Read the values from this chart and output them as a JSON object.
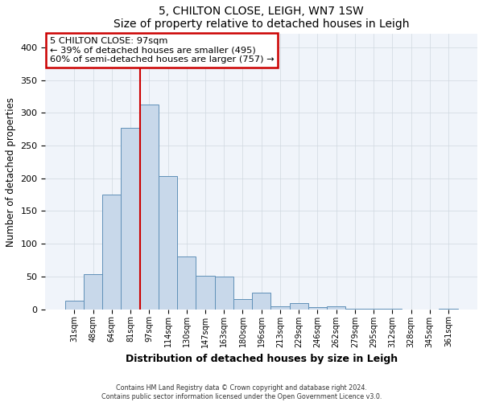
{
  "title": "5, CHILTON CLOSE, LEIGH, WN7 1SW",
  "subtitle": "Size of property relative to detached houses in Leigh",
  "xlabel": "Distribution of detached houses by size in Leigh",
  "ylabel": "Number of detached properties",
  "bar_labels": [
    "31sqm",
    "48sqm",
    "64sqm",
    "81sqm",
    "97sqm",
    "114sqm",
    "130sqm",
    "147sqm",
    "163sqm",
    "180sqm",
    "196sqm",
    "213sqm",
    "229sqm",
    "246sqm",
    "262sqm",
    "279sqm",
    "295sqm",
    "312sqm",
    "328sqm",
    "345sqm",
    "361sqm"
  ],
  "bar_heights": [
    13,
    54,
    175,
    277,
    313,
    203,
    81,
    51,
    50,
    16,
    25,
    5,
    10,
    3,
    5,
    1,
    1,
    1,
    0,
    0,
    1
  ],
  "bar_color": "#c8d8ea",
  "bar_edge_color": "#6090b8",
  "vline_index": 4,
  "vline_color": "#cc0000",
  "ylim": [
    0,
    420
  ],
  "yticks": [
    0,
    50,
    100,
    150,
    200,
    250,
    300,
    350,
    400
  ],
  "annotation_title": "5 CHILTON CLOSE: 97sqm",
  "annotation_line1": "← 39% of detached houses are smaller (495)",
  "annotation_line2": "60% of semi-detached houses are larger (757) →",
  "annotation_box_color": "#ffffff",
  "annotation_box_edge_color": "#cc0000",
  "footer1": "Contains HM Land Registry data © Crown copyright and database right 2024.",
  "footer2": "Contains public sector information licensed under the Open Government Licence v3.0.",
  "bg_color": "#ffffff",
  "plot_bg_color": "#f0f4fa"
}
